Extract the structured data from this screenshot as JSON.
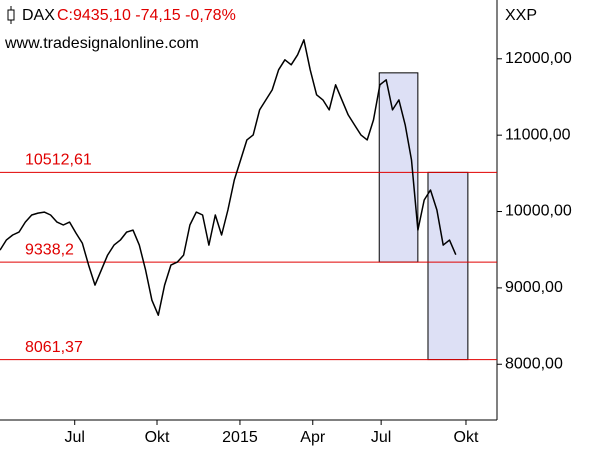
{
  "chart_data": {
    "type": "line",
    "symbol": "DAX",
    "quote": "C:9435,10 -74,15 -0,78%",
    "source": "www.tradesignalonline.com",
    "axis_label": "XXP",
    "x": [
      0,
      1,
      2,
      3,
      4,
      5,
      6,
      7,
      8,
      9,
      10,
      11,
      12,
      13,
      14,
      15,
      16,
      17,
      18,
      19,
      20,
      21,
      22,
      23,
      24,
      25,
      26,
      27,
      28,
      29,
      30,
      31,
      32,
      33,
      34,
      35,
      36,
      37,
      38,
      39,
      40,
      41,
      42,
      43,
      44,
      45,
      46,
      47,
      48,
      49,
      50,
      51,
      52,
      53,
      54,
      55,
      56,
      57,
      58,
      59,
      60,
      61,
      62,
      63,
      64,
      65,
      66,
      67,
      68,
      69,
      70,
      71,
      72
    ],
    "series": [
      {
        "name": "DAX",
        "color": "#000000",
        "values": [
          9495,
          9626,
          9692,
          9731,
          9862,
          9954,
          9980,
          9993,
          9954,
          9862,
          9823,
          9862,
          9718,
          9587,
          9298,
          9036,
          9233,
          9430,
          9561,
          9626,
          9731,
          9757,
          9561,
          9233,
          8839,
          8643,
          9036,
          9298,
          9338,
          9430,
          9823,
          9993,
          9954,
          9561,
          9954,
          9692,
          10020,
          10413,
          10675,
          10938,
          11003,
          11331,
          11462,
          11593,
          11856,
          11987,
          11921,
          12052,
          12249,
          11856,
          11528,
          11462,
          11331,
          11659,
          11462,
          11266,
          11134,
          11003,
          10938,
          11200,
          11659,
          11725,
          11331,
          11462,
          11134,
          10675,
          9757,
          10151,
          10282,
          10020,
          9561,
          9626,
          9435.1
        ]
      }
    ],
    "xlim": [
      0,
      78.5
    ],
    "xticks": [
      {
        "value": 11.8,
        "label": "Jul"
      },
      {
        "value": 24.8,
        "label": "Okt"
      },
      {
        "value": 37.9,
        "label": "2015"
      },
      {
        "value": 49.4,
        "label": "Apr"
      },
      {
        "value": 60.2,
        "label": "Jul"
      },
      {
        "value": 73.6,
        "label": "Okt"
      }
    ],
    "ylim": [
      7270,
      12770
    ],
    "yticks": [
      {
        "value": 8000,
        "label": "8000,00"
      },
      {
        "value": 9000,
        "label": "9000,00"
      },
      {
        "value": 10000,
        "label": "10000,00"
      },
      {
        "value": 11000,
        "label": "11000,00"
      },
      {
        "value": 12000,
        "label": "12000,00"
      }
    ],
    "levels": [
      {
        "value": 10512.61,
        "label": "10512,61"
      },
      {
        "value": 9338.2,
        "label": "9338,2"
      },
      {
        "value": 8061.37,
        "label": "8061,37"
      }
    ],
    "level_color": "#e00000",
    "boxes": [
      {
        "x": [
          59.9,
          66
        ],
        "y": [
          9338.2,
          11816
        ]
      },
      {
        "x": [
          67.6,
          73.9
        ],
        "y": [
          8061.37,
          10512.61
        ]
      }
    ],
    "box_color": "#dde0f5"
  }
}
